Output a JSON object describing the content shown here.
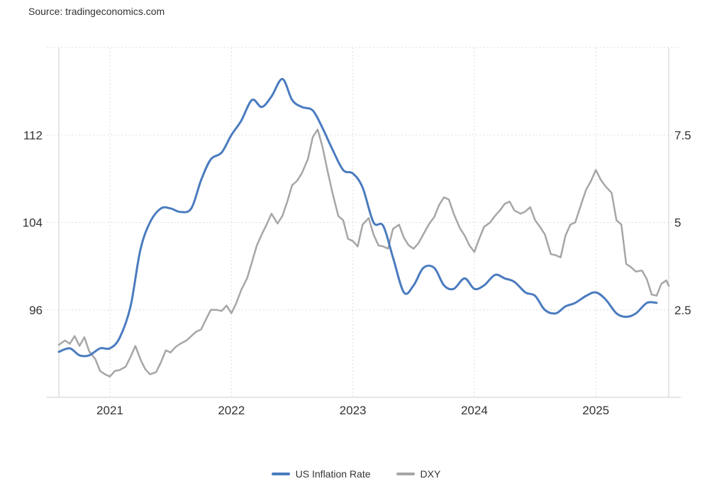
{
  "source": "Source: tradingeconomics.com",
  "colors": {
    "inflation": "#4a7bbf",
    "dxy": "#a6a6a6",
    "grid": "#dddddd"
  },
  "chart_data": {
    "type": "line",
    "title": "",
    "xlabel": "",
    "ylabel": "",
    "x_ticks": [
      "2021",
      "2022",
      "2023",
      "2024",
      "2025"
    ],
    "y_left_ticks": [
      "96",
      "104",
      "112"
    ],
    "y_right_ticks": [
      "2.5",
      "5",
      "7.5"
    ],
    "ylim_left": [
      88,
      120
    ],
    "ylim_right": [
      0,
      10
    ],
    "grid": true,
    "legend_position": "bottom-center",
    "series": [
      {
        "name": "US Inflation Rate",
        "axis": "right",
        "color": "#4a7bbf",
        "x": [
          2020.58,
          2020.67,
          2020.75,
          2020.83,
          2020.92,
          2021.0,
          2021.08,
          2021.17,
          2021.25,
          2021.33,
          2021.42,
          2021.5,
          2021.58,
          2021.67,
          2021.75,
          2021.83,
          2021.92,
          2022.0,
          2022.08,
          2022.17,
          2022.25,
          2022.33,
          2022.42,
          2022.5,
          2022.58,
          2022.67,
          2022.75,
          2022.83,
          2022.92,
          2023.0,
          2023.08,
          2023.17,
          2023.25,
          2023.33,
          2023.42,
          2023.5,
          2023.58,
          2023.67,
          2023.75,
          2023.83,
          2023.92,
          2024.0,
          2024.08,
          2024.17,
          2024.25,
          2024.33,
          2024.42,
          2024.5,
          2024.58,
          2024.67,
          2024.75,
          2024.83,
          2024.92,
          2025.0,
          2025.08,
          2025.17,
          2025.25,
          2025.33,
          2025.42,
          2025.5
        ],
        "values": [
          1.3,
          1.4,
          1.2,
          1.2,
          1.4,
          1.4,
          1.7,
          2.6,
          4.2,
          5.0,
          5.4,
          5.4,
          5.3,
          5.4,
          6.2,
          6.8,
          7.0,
          7.5,
          7.9,
          8.5,
          8.3,
          8.6,
          9.1,
          8.5,
          8.3,
          8.2,
          7.7,
          7.1,
          6.5,
          6.4,
          6.0,
          5.0,
          4.9,
          4.0,
          3.0,
          3.2,
          3.7,
          3.7,
          3.2,
          3.1,
          3.4,
          3.1,
          3.2,
          3.5,
          3.4,
          3.3,
          3.0,
          2.9,
          2.5,
          2.4,
          2.6,
          2.7,
          2.9,
          3.0,
          2.8,
          2.4,
          2.3,
          2.4,
          2.7,
          2.7
        ]
      },
      {
        "name": "DXY",
        "axis": "left",
        "color": "#a6a6a6",
        "x": [
          2020.58,
          2020.63,
          2020.67,
          2020.71,
          2020.75,
          2020.79,
          2020.83,
          2020.88,
          2020.92,
          2020.96,
          2021.0,
          2021.04,
          2021.08,
          2021.13,
          2021.17,
          2021.21,
          2021.25,
          2021.29,
          2021.33,
          2021.38,
          2021.42,
          2021.46,
          2021.5,
          2021.54,
          2021.58,
          2021.63,
          2021.67,
          2021.71,
          2021.75,
          2021.79,
          2021.83,
          2021.88,
          2021.92,
          2021.96,
          2022.0,
          2022.04,
          2022.08,
          2022.13,
          2022.17,
          2022.21,
          2022.25,
          2022.29,
          2022.33,
          2022.38,
          2022.42,
          2022.46,
          2022.5,
          2022.54,
          2022.58,
          2022.63,
          2022.67,
          2022.71,
          2022.75,
          2022.79,
          2022.83,
          2022.88,
          2022.92,
          2022.96,
          2023.0,
          2023.04,
          2023.08,
          2023.13,
          2023.17,
          2023.21,
          2023.25,
          2023.29,
          2023.33,
          2023.38,
          2023.42,
          2023.46,
          2023.5,
          2023.54,
          2023.58,
          2023.63,
          2023.67,
          2023.71,
          2023.75,
          2023.79,
          2023.83,
          2023.88,
          2023.92,
          2023.96,
          2024.0,
          2024.04,
          2024.08,
          2024.13,
          2024.17,
          2024.21,
          2024.25,
          2024.29,
          2024.33,
          2024.38,
          2024.42,
          2024.46,
          2024.5,
          2024.54,
          2024.58,
          2024.63,
          2024.67,
          2024.71,
          2024.75,
          2024.79,
          2024.83,
          2024.88,
          2024.92,
          2024.96,
          2025.0,
          2025.04,
          2025.08,
          2025.13,
          2025.17,
          2025.21,
          2025.25,
          2025.29,
          2025.33,
          2025.38,
          2025.42,
          2025.46,
          2025.5,
          2025.54,
          2025.58,
          2025.6
        ],
        "values": [
          92.8,
          93.2,
          92.9,
          93.6,
          92.7,
          93.5,
          92.2,
          91.5,
          90.4,
          90.1,
          89.9,
          90.4,
          90.5,
          90.8,
          91.7,
          92.7,
          91.5,
          90.6,
          90.1,
          90.3,
          91.2,
          92.3,
          92.1,
          92.6,
          92.9,
          93.2,
          93.6,
          94.0,
          94.2,
          95.1,
          96.0,
          96.0,
          95.9,
          96.4,
          95.7,
          96.6,
          97.8,
          98.9,
          100.4,
          101.9,
          102.9,
          103.8,
          104.8,
          103.9,
          104.6,
          105.9,
          107.4,
          107.8,
          108.5,
          109.8,
          111.8,
          112.5,
          110.9,
          108.8,
          106.8,
          104.6,
          104.2,
          102.5,
          102.3,
          101.8,
          103.8,
          104.4,
          102.9,
          101.9,
          101.8,
          101.6,
          103.4,
          103.8,
          102.6,
          101.9,
          101.6,
          102.1,
          102.9,
          103.9,
          104.5,
          105.6,
          106.3,
          106.1,
          104.8,
          103.5,
          102.8,
          101.9,
          101.3,
          102.5,
          103.6,
          104.0,
          104.6,
          105.1,
          105.7,
          105.9,
          105.1,
          104.8,
          105.0,
          105.4,
          104.2,
          103.6,
          102.9,
          101.1,
          101.0,
          100.8,
          102.8,
          103.8,
          104.0,
          105.7,
          107.0,
          107.8,
          108.8,
          107.9,
          107.3,
          106.7,
          104.2,
          103.8,
          100.2,
          99.9,
          99.5,
          99.6,
          98.8,
          97.4,
          97.3,
          98.4,
          98.7,
          98.2
        ]
      }
    ]
  },
  "legend": {
    "items": [
      {
        "label": "US Inflation Rate",
        "color": "#4a7bbf"
      },
      {
        "label": "DXY",
        "color": "#a6a6a6"
      }
    ]
  }
}
